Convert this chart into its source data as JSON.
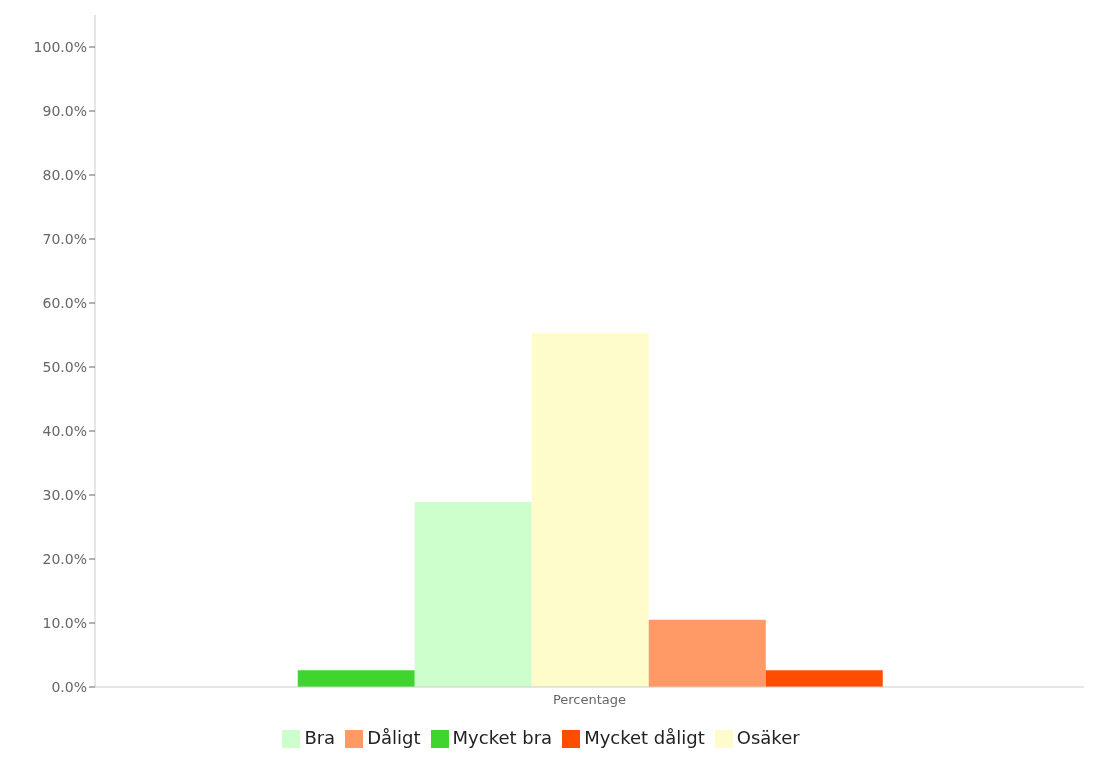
{
  "chart_data": {
    "type": "bar",
    "categories": [
      "Percentage"
    ],
    "series": [
      {
        "name": "Mycket bra",
        "color": "#40d52e",
        "values": [
          2.6
        ]
      },
      {
        "name": "Bra",
        "color": "#ccffcc",
        "values": [
          28.9
        ]
      },
      {
        "name": "Osäker",
        "color": "#fffccc",
        "values": [
          55.3
        ]
      },
      {
        "name": "Dåligt",
        "color": "#ff9966",
        "values": [
          10.5
        ]
      },
      {
        "name": "Mycket dåligt",
        "color": "#ff4d00",
        "values": [
          2.6
        ]
      }
    ],
    "ylim": [
      0,
      105
    ],
    "yticks": [
      {
        "value": 0,
        "label": "0.0%"
      },
      {
        "value": 10,
        "label": "10.0%"
      },
      {
        "value": 20,
        "label": "20.0%"
      },
      {
        "value": 30,
        "label": "30.0%"
      },
      {
        "value": 40,
        "label": "40.0%"
      },
      {
        "value": 50,
        "label": "50.0%"
      },
      {
        "value": 60,
        "label": "60.0%"
      },
      {
        "value": 70,
        "label": "70.0%"
      },
      {
        "value": 80,
        "label": "80.0%"
      },
      {
        "value": 90,
        "label": "90.0%"
      },
      {
        "value": 100,
        "label": "100.0%"
      }
    ],
    "grid": false,
    "legend": "bottom"
  }
}
